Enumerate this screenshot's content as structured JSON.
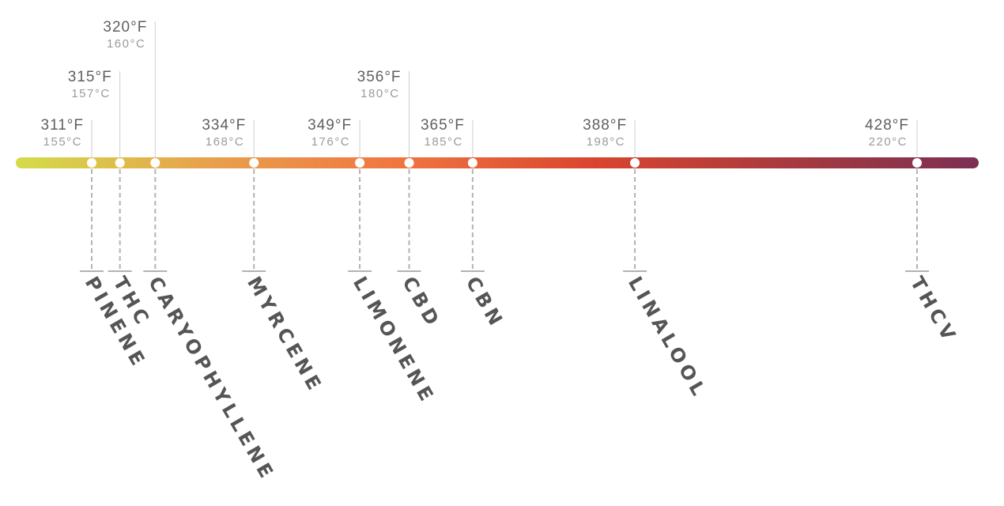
{
  "gradient_colors": [
    "#d3dc4a",
    "#e8a14c",
    "#f07540",
    "#d9452f",
    "#a83a3e",
    "#7c2f55"
  ],
  "points": [
    {
      "name": "PINENE",
      "temp_f": "311°F",
      "temp_c": "155°C",
      "f_value": 311,
      "label_tier": 0
    },
    {
      "name": "THC",
      "temp_f": "315°F",
      "temp_c": "157°C",
      "f_value": 315,
      "label_tier": 1
    },
    {
      "name": "CARYOPHYLLENE",
      "temp_f": "320°F",
      "temp_c": "160°C",
      "f_value": 320,
      "label_tier": 2
    },
    {
      "name": "MYRCENE",
      "temp_f": "334°F",
      "temp_c": "168°C",
      "f_value": 334,
      "label_tier": 0
    },
    {
      "name": "LIMONENE",
      "temp_f": "349°F",
      "temp_c": "176°C",
      "f_value": 349,
      "label_tier": 0
    },
    {
      "name": "CBD",
      "temp_f": "356°F",
      "temp_c": "180°C",
      "f_value": 356,
      "label_tier": 1
    },
    {
      "name": "CBN",
      "temp_f": "365°F",
      "temp_c": "185°C",
      "f_value": 365,
      "label_tier": 0
    },
    {
      "name": "LINALOOL",
      "temp_f": "388°F",
      "temp_c": "198°C",
      "f_value": 388,
      "label_tier": 0
    },
    {
      "name": "THCV",
      "temp_f": "428°F",
      "temp_c": "220°C",
      "f_value": 428,
      "label_tier": 0
    }
  ]
}
